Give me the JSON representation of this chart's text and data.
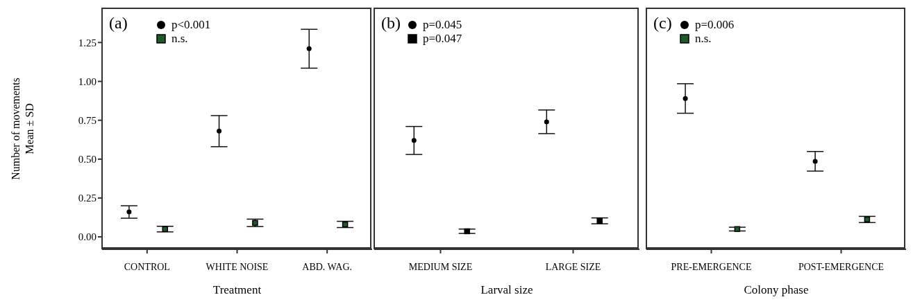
{
  "chart_data": [
    {
      "type": "scatter",
      "annotations": [
        "(a)"
      ],
      "categories": [
        "CONTROL",
        "WHITE NOISE",
        "ABD. WAG."
      ],
      "xlabel": "Treatment",
      "ylabel": "Number of movements\nMean ± SD",
      "ylim": [
        -0.08,
        1.47
      ],
      "yticks": [
        {
          "value": 0,
          "label": "0.00"
        },
        {
          "value": 0.25,
          "label": "0.25"
        },
        {
          "value": 0.5,
          "label": "0.50"
        },
        {
          "value": 0.75,
          "label": "0.75"
        },
        {
          "value": 1,
          "label": "1.00"
        },
        {
          "value": 1.25,
          "label": "1.25"
        }
      ],
      "legend": "top left",
      "grid": false,
      "series": [
        {
          "name": "p<0.001",
          "color": "#000000",
          "marker": "circle",
          "values": [
            0.16,
            0.68,
            1.21
          ],
          "errors": [
            0.04,
            0.1,
            0.125
          ]
        },
        {
          "name": "n.s.",
          "color": "#1f5a2c",
          "marker": "square",
          "values": [
            0.05,
            0.09,
            0.08
          ],
          "errors": [
            0.018,
            0.024,
            0.02
          ]
        }
      ]
    },
    {
      "type": "scatter",
      "annotations": [
        "(b)"
      ],
      "categories": [
        "MEDIUM SIZE",
        "LARGE SIZE"
      ],
      "xlabel": "Larval size",
      "ylim": [
        -0.08,
        1.47
      ],
      "yticks": [
        {
          "value": 0,
          "label": null
        },
        {
          "value": 0.25,
          "label": null
        },
        {
          "value": 0.5,
          "label": null
        },
        {
          "value": 0.75,
          "label": null
        },
        {
          "value": 1,
          "label": null
        },
        {
          "value": 1.25,
          "label": null
        }
      ],
      "tick_labels": "x",
      "legend": "top left",
      "grid": false,
      "series": [
        {
          "name": "p=0.045",
          "color": "#000000",
          "marker": "circle",
          "values": [
            0.62,
            0.74
          ],
          "errors": [
            0.09,
            0.076
          ]
        },
        {
          "name": "p=0.047",
          "color": "#000000",
          "marker": "square",
          "values": [
            0.036,
            0.103
          ],
          "errors": [
            0.014,
            0.019
          ]
        }
      ]
    },
    {
      "type": "scatter",
      "annotations": [
        "(c)"
      ],
      "categories": [
        "PRE-EMERGENCE",
        "POST-EMERGENCE"
      ],
      "xlabel": "Colony phase",
      "ylim": [
        -0.08,
        1.47
      ],
      "yticks": [
        {
          "value": 0,
          "label": null
        },
        {
          "value": 0.25,
          "label": null
        },
        {
          "value": 0.5,
          "label": null
        },
        {
          "value": 0.75,
          "label": null
        },
        {
          "value": 1,
          "label": null
        },
        {
          "value": 1.25,
          "label": null
        }
      ],
      "tick_labels": "x",
      "legend": "top left",
      "grid": false,
      "series": [
        {
          "name": "p=0.006",
          "color": "#000000",
          "marker": "circle",
          "values": [
            0.89,
            0.486
          ],
          "errors": [
            0.095,
            0.063
          ]
        },
        {
          "name": "n.s.",
          "color": "#1f5a2c",
          "marker": "square",
          "values": [
            0.05,
            0.112
          ],
          "errors": [
            0.012,
            0.02
          ]
        }
      ]
    }
  ]
}
